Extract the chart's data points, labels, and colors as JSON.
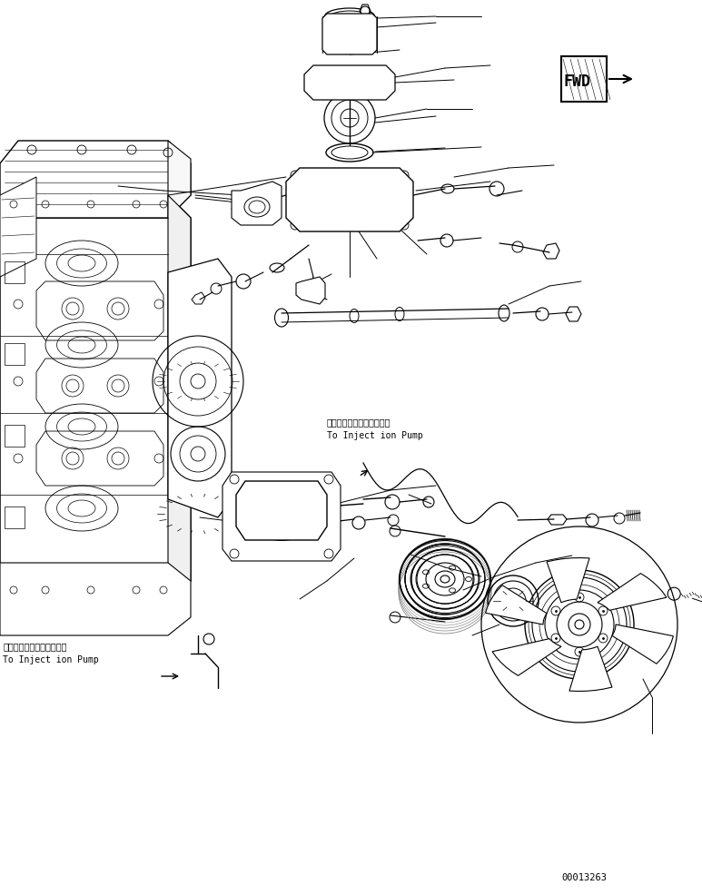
{
  "bg_color": "#ffffff",
  "line_color": "#000000",
  "fig_width": 7.73,
  "fig_height": 9.86,
  "dpi": 100,
  "serial_number": "00013263",
  "fwd_label": "FWD",
  "annotation1_jp": "インジェクションポンプへ",
  "annotation1_en": "To Inject ion Pump",
  "annotation2_jp": "インジェクションポンプへ",
  "annotation2_en": "To Inject ion Pump"
}
